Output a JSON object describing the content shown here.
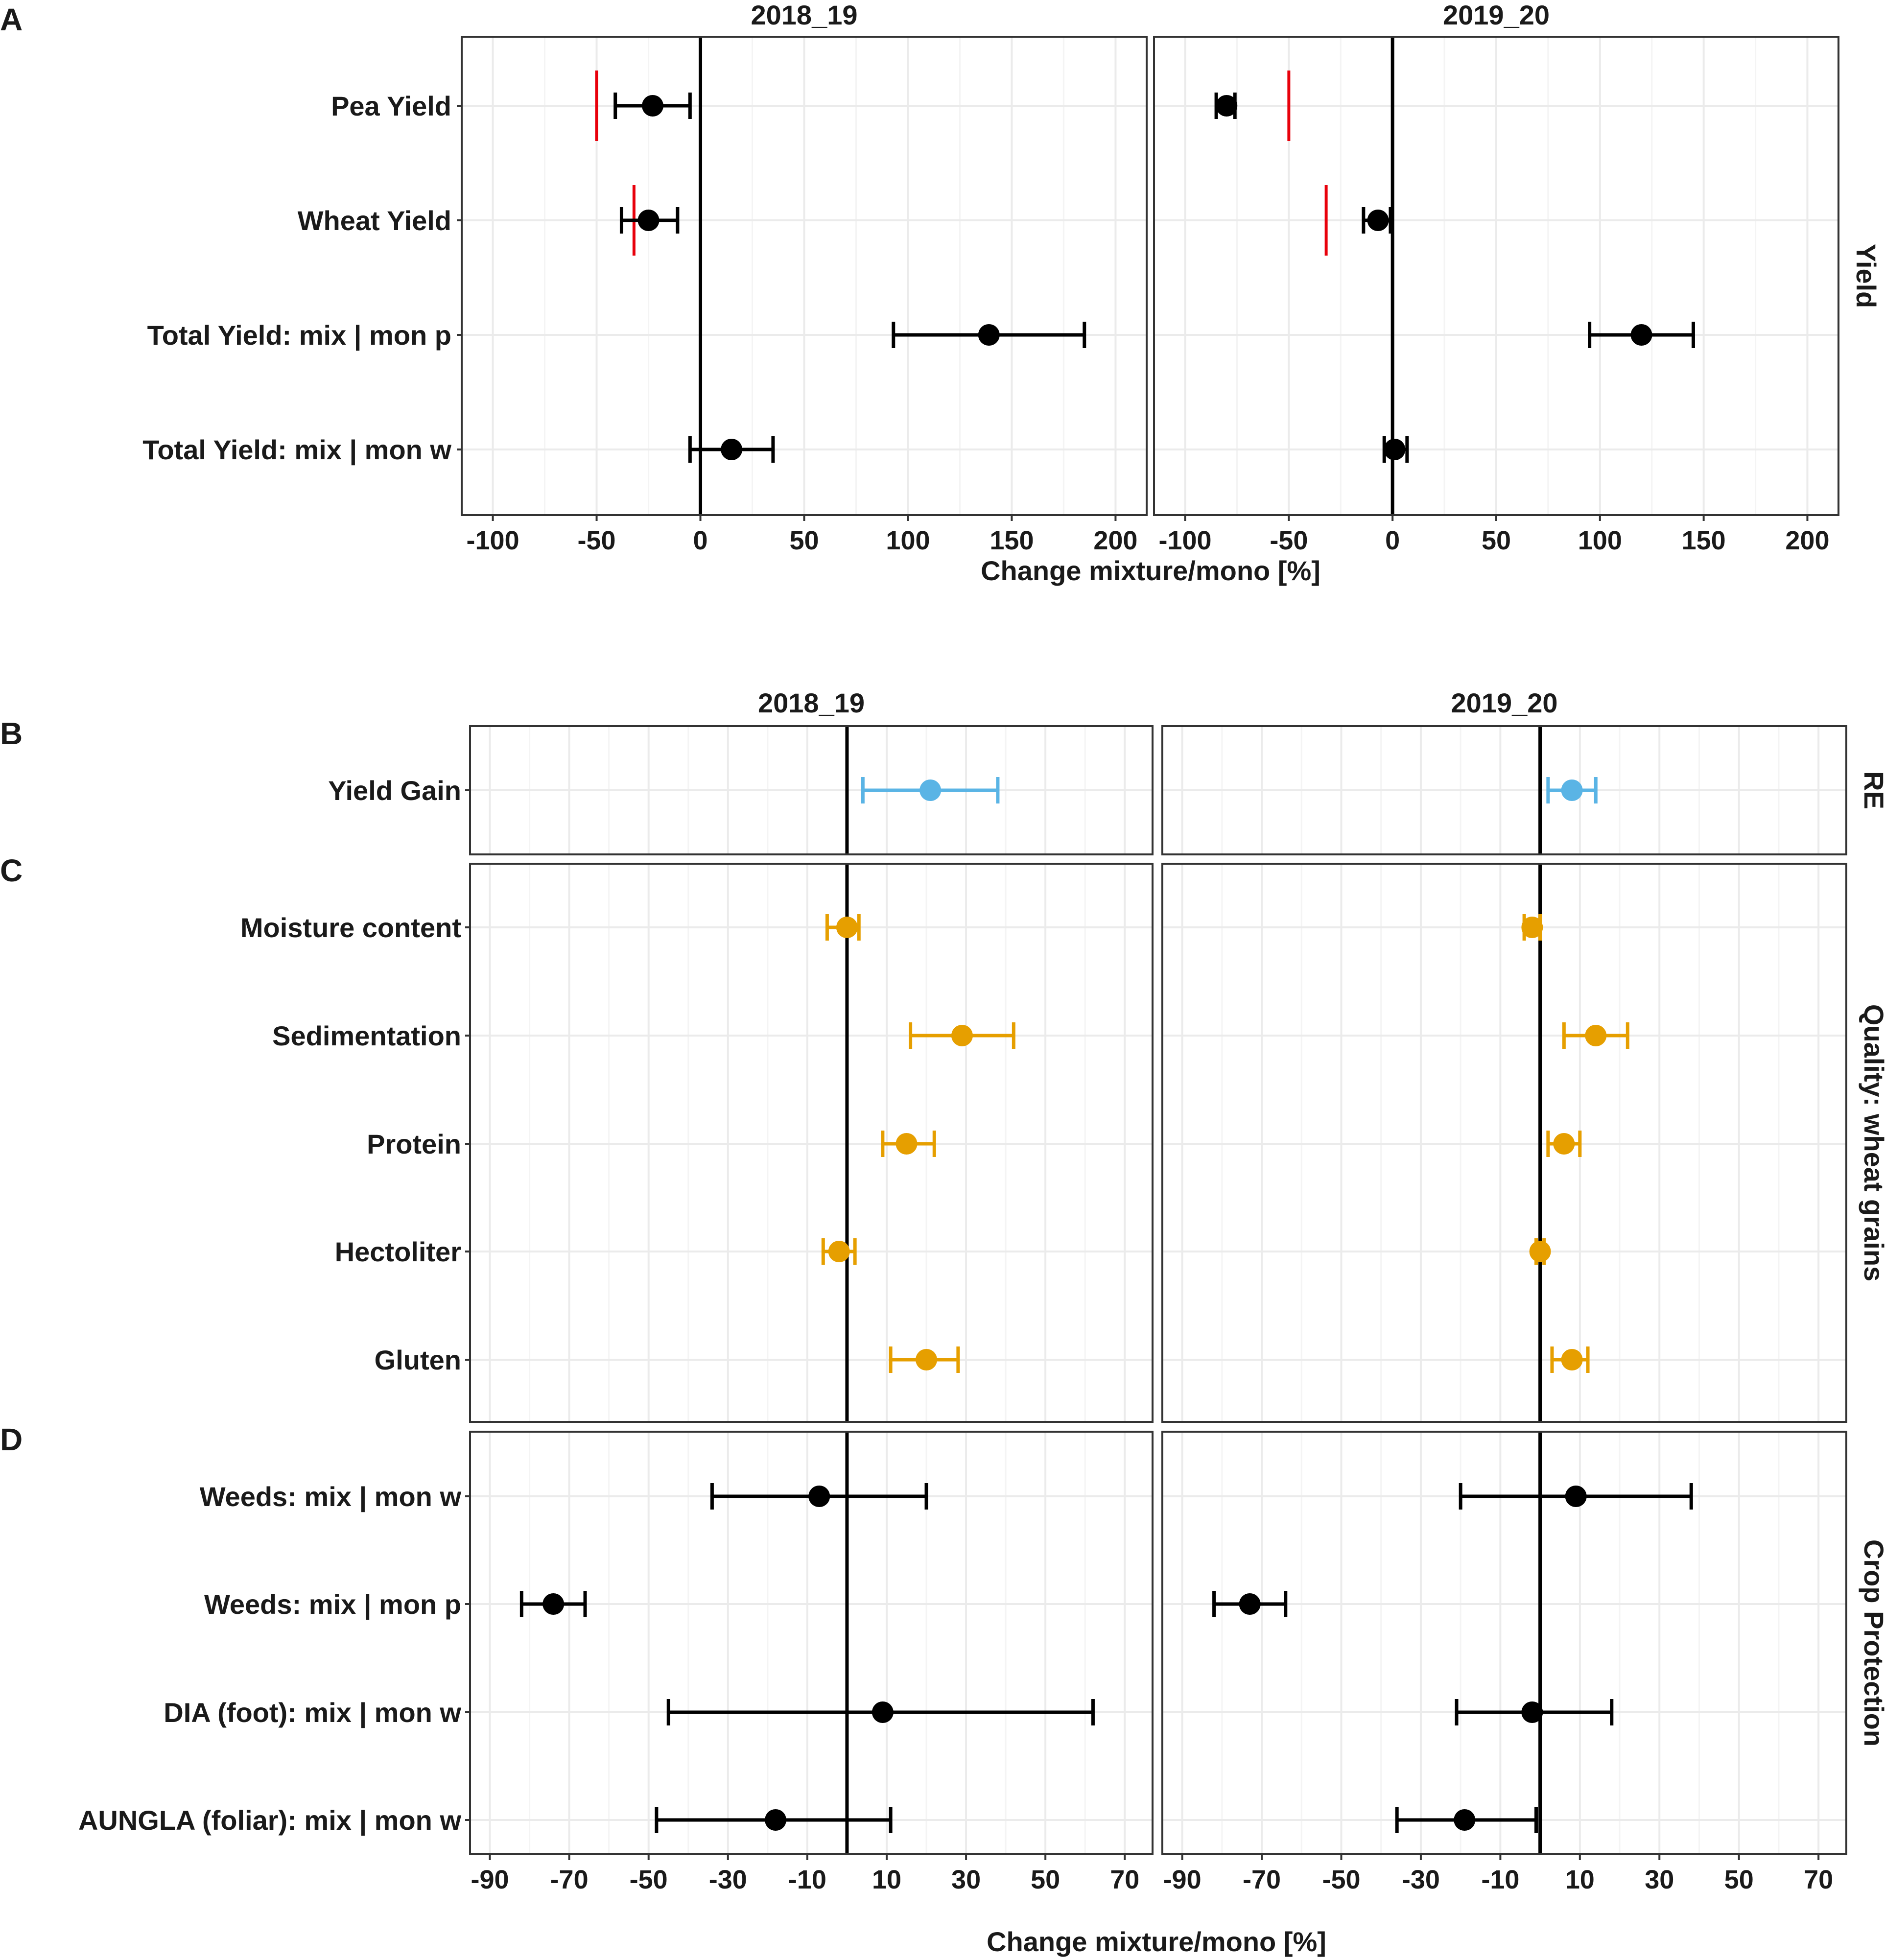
{
  "colors": {
    "black": "#000000",
    "red": "#e8000b",
    "blue": "#5ab4e5",
    "orange": "#e69f00",
    "frame": "#333333",
    "grid_major": "#ebebeb",
    "grid_minor": "#f4f4f4"
  },
  "chart_data": [
    {
      "panel_id": "A",
      "type": "dot-errorbar",
      "facet_label": "Yield",
      "x_axis_title": "Change mixture/mono [%]",
      "xlim": [
        -115,
        215
      ],
      "xticks": [
        -100,
        -50,
        0,
        50,
        100,
        150,
        200
      ],
      "tick_labels": [
        "-100",
        "-50",
        "0",
        "50",
        "100",
        "150",
        "200"
      ],
      "categories": [
        "Pea Yield",
        "Wheat Yield",
        "Total Yield: mix | mon p",
        "Total Yield: mix | mon w"
      ],
      "columns": [
        {
          "title": "2018_19",
          "points": [
            {
              "label": "Pea Yield",
              "value": -23,
              "low": -41,
              "high": -5,
              "color": "black"
            },
            {
              "label": "Wheat Yield",
              "value": -25,
              "low": -38,
              "high": -11,
              "color": "black"
            },
            {
              "label": "Total Yield: mix | mon p",
              "value": 139,
              "low": 93,
              "high": 185,
              "color": "black"
            },
            {
              "label": "Total Yield: mix | mon w",
              "value": 15,
              "low": -5,
              "high": 35,
              "color": "black"
            }
          ],
          "reference_lines": [
            {
              "label": "Pea Yield",
              "value": -50,
              "color": "red"
            },
            {
              "label": "Wheat Yield",
              "value": -32,
              "color": "red"
            }
          ]
        },
        {
          "title": "2019_20",
          "points": [
            {
              "label": "Pea Yield",
              "value": -80,
              "low": -85,
              "high": -76,
              "color": "black"
            },
            {
              "label": "Wheat Yield",
              "value": -7,
              "low": -14,
              "high": -1,
              "color": "black"
            },
            {
              "label": "Total Yield: mix | mon p",
              "value": 120,
              "low": 95,
              "high": 145,
              "color": "black"
            },
            {
              "label": "Total Yield: mix | mon w",
              "value": 1,
              "low": -4,
              "high": 7,
              "color": "black"
            }
          ],
          "reference_lines": [
            {
              "label": "Pea Yield",
              "value": -50,
              "color": "red"
            },
            {
              "label": "Wheat Yield",
              "value": -32,
              "color": "red"
            }
          ]
        }
      ]
    },
    {
      "panel_id": "B",
      "type": "dot-errorbar",
      "facet_label": "RE",
      "xlim": [
        -95,
        77
      ],
      "xticks": [
        -90,
        -70,
        -50,
        -30,
        -10,
        10,
        30,
        50,
        70
      ],
      "categories": [
        "Yield Gain"
      ],
      "column_titles": [
        "2018_19",
        "2019_20"
      ],
      "columns": [
        {
          "points": [
            {
              "label": "Yield Gain",
              "value": 21,
              "low": 4,
              "high": 38,
              "color": "blue"
            }
          ]
        },
        {
          "points": [
            {
              "label": "Yield Gain",
              "value": 8,
              "low": 2,
              "high": 14,
              "color": "blue"
            }
          ]
        }
      ]
    },
    {
      "panel_id": "C",
      "type": "dot-errorbar",
      "facet_label": "Quality: wheat grains",
      "xlim": [
        -95,
        77
      ],
      "xticks": [
        -90,
        -70,
        -50,
        -30,
        -10,
        10,
        30,
        50,
        70
      ],
      "categories": [
        "Moisture content",
        "Sedimentation",
        "Protein",
        "Hectoliter",
        "Gluten"
      ],
      "columns": [
        {
          "points": [
            {
              "label": "Moisture content",
              "value": 0,
              "low": -5,
              "high": 3,
              "color": "orange"
            },
            {
              "label": "Sedimentation",
              "value": 29,
              "low": 16,
              "high": 42,
              "color": "orange"
            },
            {
              "label": "Protein",
              "value": 15,
              "low": 9,
              "high": 22,
              "color": "orange"
            },
            {
              "label": "Hectoliter",
              "value": -2,
              "low": -6,
              "high": 2,
              "color": "orange"
            },
            {
              "label": "Gluten",
              "value": 20,
              "low": 11,
              "high": 28,
              "color": "orange"
            }
          ]
        },
        {
          "points": [
            {
              "label": "Moisture content",
              "value": -2,
              "low": -4,
              "high": 0,
              "color": "orange"
            },
            {
              "label": "Sedimentation",
              "value": 14,
              "low": 6,
              "high": 22,
              "color": "orange"
            },
            {
              "label": "Protein",
              "value": 6,
              "low": 2,
              "high": 10,
              "color": "orange"
            },
            {
              "label": "Hectoliter",
              "value": 0,
              "low": -1,
              "high": 1,
              "color": "orange"
            },
            {
              "label": "Gluten",
              "value": 8,
              "low": 3,
              "high": 12,
              "color": "orange"
            }
          ]
        }
      ]
    },
    {
      "panel_id": "D",
      "type": "dot-errorbar",
      "facet_label": "Crop Protection",
      "x_axis_title": "Change mixture/mono [%]",
      "xlim": [
        -95,
        77
      ],
      "xticks": [
        -90,
        -70,
        -50,
        -30,
        -10,
        10,
        30,
        50,
        70
      ],
      "tick_labels": [
        "-90",
        "-70",
        "-50",
        "-30",
        "-10",
        "10",
        "30",
        "50",
        "70"
      ],
      "categories": [
        "Weeds: mix | mon w",
        "Weeds: mix | mon p",
        "DIA (foot): mix | mon w",
        "AUNGLA   (foliar): mix | mon w"
      ],
      "columns": [
        {
          "points": [
            {
              "label": "Weeds: mix | mon w",
              "value": -7,
              "low": -34,
              "high": 20,
              "color": "black"
            },
            {
              "label": "Weeds: mix | mon p",
              "value": -74,
              "low": -82,
              "high": -66,
              "color": "black"
            },
            {
              "label": "DIA (foot): mix | mon w",
              "value": 9,
              "low": -45,
              "high": 62,
              "color": "black"
            },
            {
              "label": "AUNGLA   (foliar): mix | mon w",
              "value": -18,
              "low": -48,
              "high": 11,
              "color": "black"
            }
          ]
        },
        {
          "points": [
            {
              "label": "Weeds: mix | mon w",
              "value": 9,
              "low": -20,
              "high": 38,
              "color": "black"
            },
            {
              "label": "Weeds: mix | mon p",
              "value": -73,
              "low": -82,
              "high": -64,
              "color": "black"
            },
            {
              "label": "DIA (foot): mix | mon w",
              "value": -2,
              "low": -21,
              "high": 18,
              "color": "black"
            },
            {
              "label": "AUNGLA   (foliar): mix | mon w",
              "value": -19,
              "low": -36,
              "high": -1,
              "color": "black"
            }
          ]
        }
      ]
    }
  ]
}
